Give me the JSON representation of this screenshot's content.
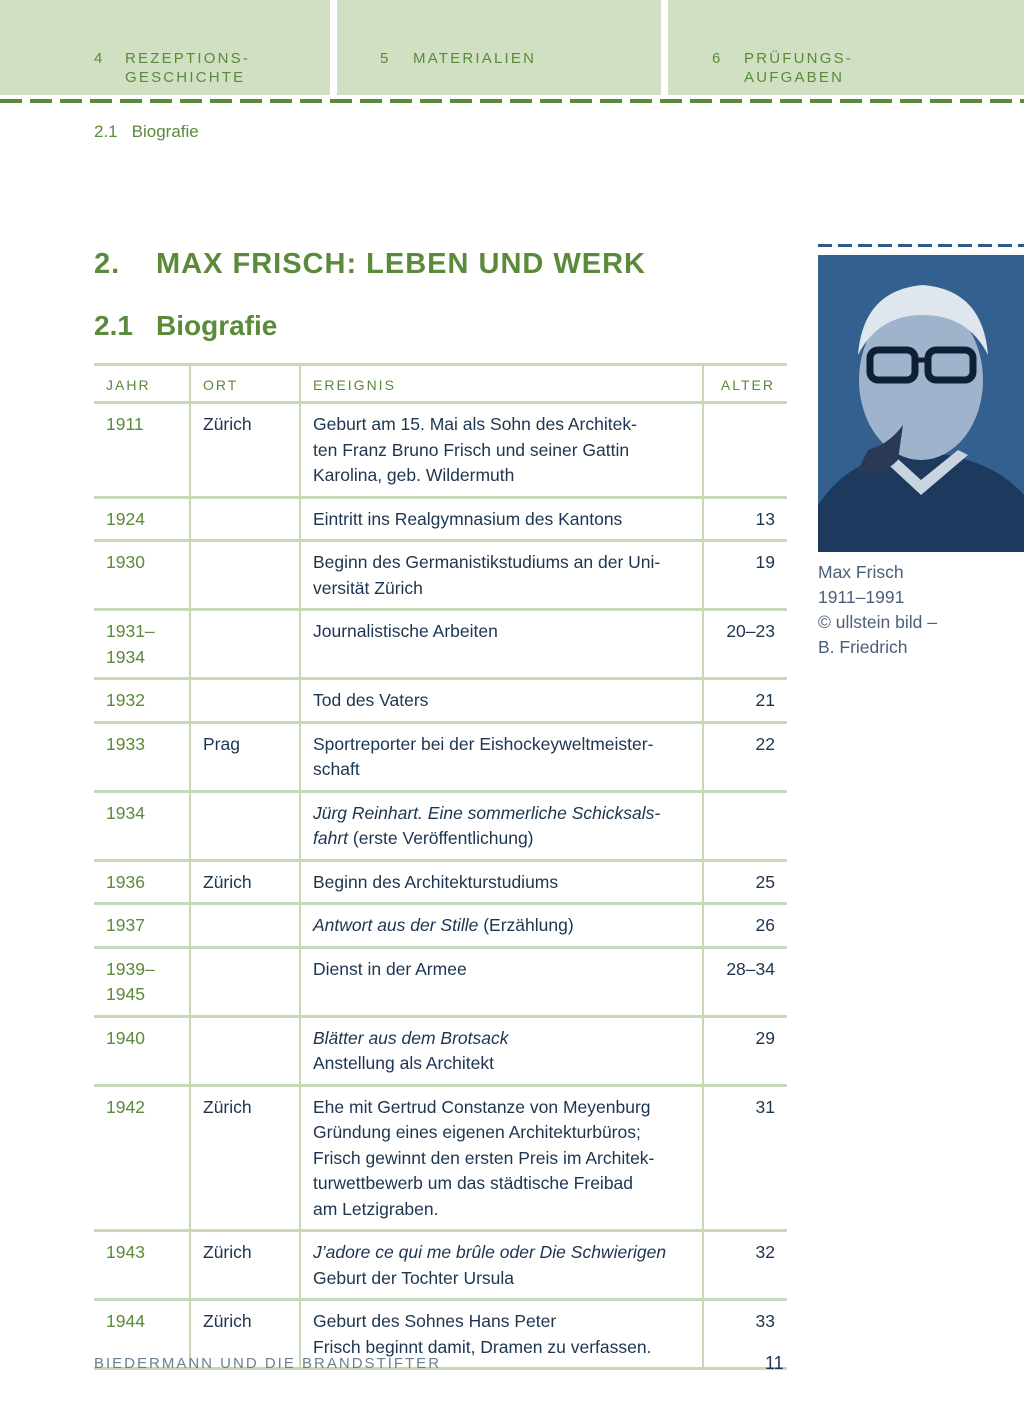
{
  "nav_tabs": [
    {
      "num": "4",
      "label_lines": [
        "REZEPTIONS-",
        "GESCHICHTE"
      ]
    },
    {
      "num": "5",
      "label_lines": [
        "MATERIALIEN"
      ]
    },
    {
      "num": "6",
      "label_lines": [
        "PRÜFUNGS-",
        "AUFGABEN"
      ]
    }
  ],
  "breadcrumb": {
    "num": "2.1",
    "label": "Biografie"
  },
  "chapter": {
    "num": "2.",
    "title": "MAX FRISCH: LEBEN UND WERK"
  },
  "section": {
    "num": "2.1",
    "title": "Biografie"
  },
  "table": {
    "headers": [
      "JAHR",
      "ORT",
      "EREIGNIS",
      "ALTER"
    ],
    "rows": [
      {
        "jahr": "1911",
        "ort": "Zürich",
        "alter": "",
        "lines": [
          [
            {
              "t": "Geburt am 15. Mai als Sohn des Architek-"
            }
          ],
          [
            {
              "t": "ten Franz Bruno Frisch und seiner Gattin"
            }
          ],
          [
            {
              "t": "Karolina, geb. Wildermuth"
            }
          ]
        ]
      },
      {
        "jahr": "1924",
        "ort": "",
        "alter": "13",
        "lines": [
          [
            {
              "t": "Eintritt ins Realgymnasium des Kantons"
            }
          ]
        ]
      },
      {
        "jahr": "1930",
        "ort": "",
        "alter": "19",
        "lines": [
          [
            {
              "t": "Beginn des Germanistikstudiums an der Uni-"
            }
          ],
          [
            {
              "t": "versität Zürich"
            }
          ]
        ]
      },
      {
        "jahr": "1931–\n1934",
        "ort": "",
        "alter": "20–23",
        "lines": [
          [
            {
              "t": "Journalistische Arbeiten"
            }
          ]
        ]
      },
      {
        "jahr": "1932",
        "ort": "",
        "alter": "21",
        "lines": [
          [
            {
              "t": "Tod des Vaters"
            }
          ]
        ]
      },
      {
        "jahr": "1933",
        "ort": "Prag",
        "alter": "22",
        "lines": [
          [
            {
              "t": "Sportreporter bei der Eishockeyweltmeister-"
            }
          ],
          [
            {
              "t": "schaft"
            }
          ]
        ]
      },
      {
        "jahr": "1934",
        "ort": "",
        "alter": "",
        "lines": [
          [
            {
              "t": "Jürg Reinhart. Eine sommerliche Schicksals-",
              "i": true
            }
          ],
          [
            {
              "t": "fahrt",
              "i": true
            },
            {
              "t": " (erste Veröffentlichung)"
            }
          ]
        ]
      },
      {
        "jahr": "1936",
        "ort": "Zürich",
        "alter": "25",
        "lines": [
          [
            {
              "t": "Beginn des Architekturstudiums"
            }
          ]
        ]
      },
      {
        "jahr": "1937",
        "ort": "",
        "alter": "26",
        "lines": [
          [
            {
              "t": "Antwort aus der Stille",
              "i": true
            },
            {
              "t": " (Erzählung)"
            }
          ]
        ]
      },
      {
        "jahr": "1939–\n1945",
        "ort": "",
        "alter": "28–34",
        "lines": [
          [
            {
              "t": "Dienst in der Armee"
            }
          ]
        ]
      },
      {
        "jahr": "1940",
        "ort": "",
        "alter": "29",
        "lines": [
          [
            {
              "t": "Blätter aus dem Brotsack",
              "i": true
            }
          ],
          [
            {
              "t": "Anstellung als Architekt"
            }
          ]
        ]
      },
      {
        "jahr": "1942",
        "ort": "Zürich",
        "alter": "31",
        "lines": [
          [
            {
              "t": "Ehe mit Gertrud Constanze von Meyenburg"
            }
          ],
          [
            {
              "t": "Gründung eines eigenen Architekturbüros;"
            }
          ],
          [
            {
              "t": "Frisch gewinnt den ersten Preis im Architek-"
            }
          ],
          [
            {
              "t": "turwettbewerb um das städtische Freibad"
            }
          ],
          [
            {
              "t": "am Letzigraben."
            }
          ]
        ]
      },
      {
        "jahr": "1943",
        "ort": "Zürich",
        "alter": "32",
        "lines": [
          [
            {
              "t": "J’adore ce qui me brûle oder Die Schwierigen",
              "i": true
            }
          ],
          [
            {
              "t": "Geburt der Tochter Ursula"
            }
          ]
        ]
      },
      {
        "jahr": "1944",
        "ort": "Zürich",
        "alter": "33",
        "lines": [
          [
            {
              "t": "Geburt des Sohnes Hans Peter"
            }
          ],
          [
            {
              "t": "Frisch beginnt damit, Dramen zu verfassen."
            }
          ]
        ]
      }
    ]
  },
  "photo_caption": [
    "Max Frisch",
    "1911–1991",
    "© ullstein bild –",
    "B. Friedrich"
  ],
  "footer": {
    "book_title": "BIEDERMANN UND DIE BRANDSTIFTER",
    "page": "11"
  },
  "colors": {
    "accent_green": "#5a8a3a",
    "tab_bg": "#d1e0c2",
    "rule": "#c8d9b8",
    "text": "#1d3550",
    "photo_tint": "#2f5a8a"
  }
}
